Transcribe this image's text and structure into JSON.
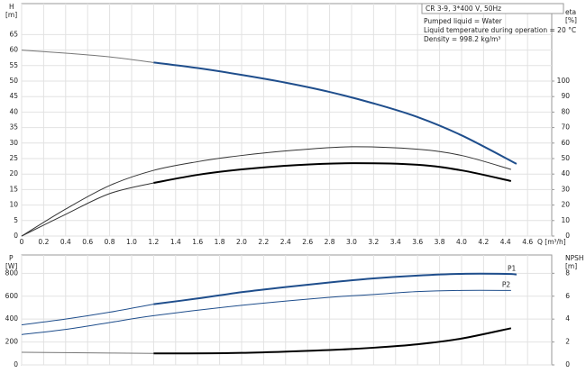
{
  "chart_data": [
    {
      "type": "line",
      "model": "CR 3-9, 3*400 V, 50Hz",
      "info": [
        "Pumped liquid = Water",
        "Liquid temperature during operation = 20 °C",
        "Density = 998.2 kg/m³"
      ],
      "ylabel": "H",
      "yunit": "[m]",
      "y2label": "eta",
      "y2unit": "[%]",
      "xlabel": "Q [m³/h]",
      "xlim": [
        0,
        4.82
      ],
      "ylim": [
        0,
        75
      ],
      "y2lim": [
        0,
        150
      ],
      "grid": true,
      "xticks": [
        0,
        0.2,
        0.4,
        0.6,
        0.8,
        {
          "value": 1,
          "label": "1.0"
        },
        1.2,
        1.4,
        1.6,
        1.8,
        {
          "value": 2,
          "label": "2.0"
        },
        2.2,
        2.4,
        2.6,
        2.8,
        {
          "value": 3,
          "label": "3.0"
        },
        3.2,
        3.4,
        3.6,
        3.8,
        {
          "value": 4,
          "label": "4.0"
        },
        4.2,
        4.4,
        4.6
      ],
      "yticks": [
        0,
        5,
        10,
        15,
        20,
        25,
        30,
        35,
        40,
        45,
        50,
        55,
        60,
        65
      ],
      "y2ticks": [
        0,
        10,
        20,
        30,
        40,
        50,
        60,
        70,
        80,
        90,
        100
      ],
      "series": [
        {
          "color": "#777777",
          "width": 1,
          "x": [
            0,
            0.4,
            0.8,
            1.2
          ],
          "values": [
            60,
            59,
            57.8,
            56
          ]
        },
        {
          "color": "#1f4e8c",
          "width": 2,
          "x": [
            1.2,
            1.6,
            2.0,
            2.4,
            2.8,
            3.2,
            3.6,
            4.0,
            4.5
          ],
          "values": [
            56,
            54.2,
            52,
            49.5,
            46.5,
            42.8,
            38.4,
            32.5,
            23.3
          ]
        },
        {
          "color": "#333333",
          "width": 1,
          "axis": "y2",
          "x": [
            0,
            0.4,
            0.8,
            1.2,
            1.6,
            2.0,
            2.5,
            3.0,
            3.6,
            4.0,
            4.45
          ],
          "values": [
            0,
            17.4,
            32.6,
            42.4,
            48,
            52,
            55.5,
            57.6,
            56,
            52,
            43
          ]
        },
        {
          "color": "#333333",
          "width": 1,
          "axis": "y2",
          "x": [
            0,
            0.4,
            0.8,
            1.2
          ],
          "values": [
            0,
            14,
            27.4,
            34.3
          ]
        },
        {
          "color": "#000000",
          "width": 2,
          "axis": "y2",
          "x": [
            1.2,
            1.6,
            2.0,
            2.5,
            3.0,
            3.6,
            4.0,
            4.45
          ],
          "values": [
            34.3,
            39.5,
            43,
            45.8,
            47,
            46,
            42.4,
            35.5
          ]
        }
      ]
    },
    {
      "type": "line",
      "ylabel": "P",
      "yunit": "[W]",
      "y2label": "NPSH",
      "y2unit": "[m]",
      "xlim": [
        0,
        4.82
      ],
      "ylim": [
        0,
        960
      ],
      "y2lim": [
        0,
        9.6
      ],
      "grid": true,
      "yticks": [
        0,
        200,
        400,
        600,
        800
      ],
      "y2ticks": [
        0,
        2,
        4,
        6,
        8
      ],
      "series": [
        {
          "color": "#1f4e8c",
          "width": 1,
          "x": [
            0,
            0.4,
            0.8,
            1.2
          ],
          "values": [
            350,
            400,
            460,
            530
          ]
        },
        {
          "name": "P1",
          "color": "#1f4e8c",
          "width": 2,
          "x": [
            1.2,
            1.6,
            2.0,
            2.4,
            2.8,
            3.2,
            3.6,
            4.0,
            4.4,
            4.5
          ],
          "values": [
            530,
            580,
            635,
            680,
            720,
            755,
            780,
            795,
            795,
            790
          ]
        },
        {
          "name": "P2",
          "color": "#1f4e8c",
          "width": 1,
          "x": [
            0,
            0.4,
            0.8,
            1.2,
            2.0,
            2.8,
            3.2,
            3.6,
            4.0,
            4.45
          ],
          "values": [
            265,
            310,
            370,
            430,
            520,
            590,
            615,
            640,
            650,
            650
          ]
        },
        {
          "color": "#777777",
          "width": 1,
          "axis": "y2",
          "x": [
            0,
            0.6,
            1.2
          ],
          "values": [
            1.1,
            1.05,
            1.0
          ]
        },
        {
          "color": "#000000",
          "width": 2,
          "axis": "y2",
          "x": [
            1.2,
            2.0,
            2.8,
            3.2,
            3.6,
            4.0,
            4.45
          ],
          "values": [
            1.0,
            1.05,
            1.3,
            1.5,
            1.8,
            2.3,
            3.2
          ]
        }
      ]
    }
  ]
}
